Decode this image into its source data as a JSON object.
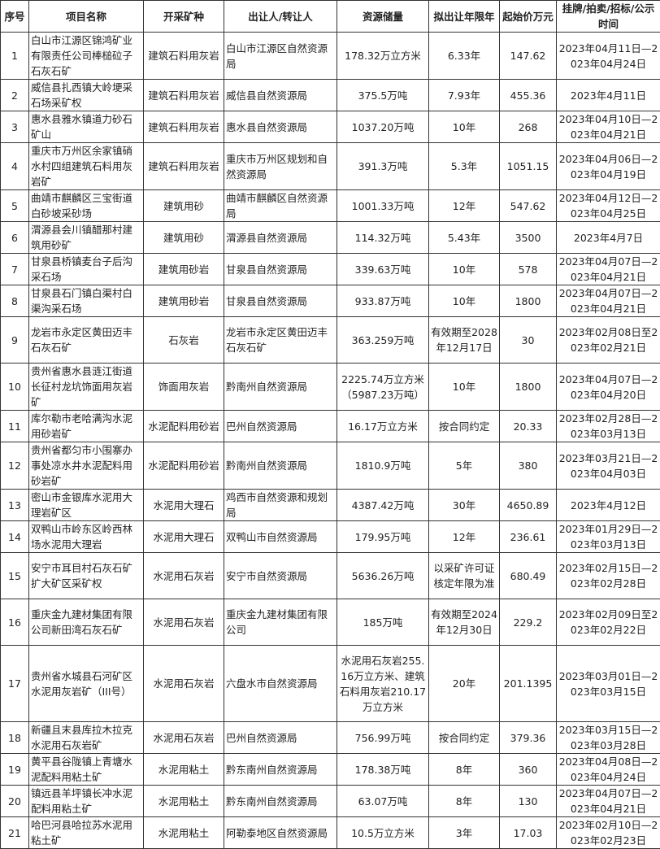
{
  "headers": [
    "序号",
    "项目名称",
    "开采矿种",
    "出让人/转让人",
    "资源储量",
    "拟出让年限年",
    "起始价万元",
    "挂牌/拍卖/招标/公示时间"
  ],
  "rows": [
    [
      "1",
      "白山市江源区锦鸿矿业有限责任公司棒槌砬子石灰石矿",
      "建筑石料用灰岩",
      "白山市江源区自然资源局",
      "178.32万立方米",
      "6.33年",
      "147.62",
      "2023年04月11日—2023年04月24日"
    ],
    [
      "2",
      "威信县扎西镇大岭埂采石场采矿权",
      "建筑石料用灰岩",
      "威信县自然资源局",
      "375.5万吨",
      "7.93年",
      "455.36",
      "2023年4月11日"
    ],
    [
      "3",
      "惠水县雅水镇道力砂石矿山",
      "建筑石料用灰岩",
      "惠水县自然资源局",
      "1037.20万吨",
      "10年",
      "268",
      "2023年04月10日—2023年04月21日"
    ],
    [
      "4",
      "重庆市万州区余家镇硝水村四组建筑石料用灰岩矿",
      "建筑石料用灰岩",
      "重庆市万州区规划和自然资源局",
      "391.3万吨",
      "5.3年",
      "1051.15",
      "2023年04月06日—2023年04月19日"
    ],
    [
      "5",
      "曲靖市麒麟区三宝街道白砂坡采砂场",
      "建筑用砂",
      "曲靖市麒麟区自然资源局",
      "1001.33万吨",
      "12年",
      "547.62",
      "2023年04月12日—2023年04月25日"
    ],
    [
      "6",
      "渭源县会川镇醋那村建筑用砂矿",
      "建筑用砂",
      "渭源县自然资源局",
      "114.32万吨",
      "5.43年",
      "3500",
      "2023年4月7日"
    ],
    [
      "7",
      "甘泉县桥镇麦台子后沟采石场",
      "建筑用砂岩",
      "甘泉县自然资源局",
      "339.63万吨",
      "10年",
      "578",
      "2023年04月07日—2023年04月21日"
    ],
    [
      "8",
      "甘泉县石门镇白渠村白渠沟采石场",
      "建筑用砂岩",
      "甘泉县自然资源局",
      "933.87万吨",
      "10年",
      "1800",
      "2023年04月07日—2023年04月21日"
    ],
    [
      "9",
      "龙岩市永定区黄田迈丰石灰石矿",
      "石灰岩",
      "龙岩市永定区黄田迈丰石灰石矿",
      "363.259万吨",
      "有效期至2028年12月17日",
      "30",
      "2023年02月08日至2023年02月21日"
    ],
    [
      "10",
      "贵州省惠水县涟江街道长征村龙坑饰面用灰岩矿",
      "饰面用灰岩",
      "黔南州自然资源局",
      "2225.74万立方米（5987.23万吨）",
      "10年",
      "1800",
      "2023年04月07日—2023年04月20日"
    ],
    [
      "11",
      "库尔勒市老哈满沟水泥用砂岩矿",
      "水泥配料用砂岩",
      "巴州自然资源局",
      "16.17万立方米",
      "按合同约定",
      "20.33",
      "2023年02月28日—2023年03月13日"
    ],
    [
      "12",
      "贵州省都匀市小围寨办事处凉水井水泥配料用砂岩矿",
      "水泥配料用砂岩",
      "黔南州自然资源局",
      "1810.9万吨",
      "5年",
      "380",
      "2023年03月21日—2023年04月03日"
    ],
    [
      "13",
      "密山市金银库水泥用大理岩矿区",
      "水泥用大理石",
      "鸡西市自然资源和规划局",
      "4387.42万吨",
      "30年",
      "4650.89",
      "2023年4月12日"
    ],
    [
      "14",
      "双鸭山市岭东区岭西林场水泥用大理岩",
      "水泥用大理石",
      "双鸭山市自然资源局",
      "179.95万吨",
      "12年",
      "236.61",
      "2023年01月29日—2023年03月13日"
    ],
    [
      "15",
      "安宁市耳目村石灰石矿扩大矿区采矿权",
      "水泥用石灰岩",
      "安宁市自然资源局",
      "5636.26万吨",
      "以采矿许可证核定年限为准",
      "680.49",
      "2023年02月15日—2023年02月28日"
    ],
    [
      "16",
      "重庆金九建材集团有限公司新田湾石灰石矿",
      "水泥用石灰岩",
      "重庆金九建材集团有限公司",
      "185万吨",
      "有效期至2024年12月30日",
      "229.2",
      "2023年02月09日至2023年02月22日"
    ],
    [
      "17",
      "贵州省水城县石河矿区水泥用灰岩矿（III号）",
      "水泥用石灰岩",
      "六盘水市自然资源局",
      "水泥用石灰岩255.16万立方米、建筑石料用灰岩210.17万立方米",
      "20年",
      "201.1395",
      "2023年03月01日—2023年03月15日"
    ],
    [
      "18",
      "新疆且末县库拉木拉克水泥用石灰岩矿",
      "水泥用石灰岩",
      "巴州自然资源局",
      "756.99万吨",
      "按合同约定",
      "379.36",
      "2023年03月15日—2023年03月28日"
    ],
    [
      "19",
      "黄平县谷陇镇上青塘水泥配料用粘土矿",
      "水泥用粘土",
      "黔东南州自然资源局",
      "178.38万吨",
      "8年",
      "360",
      "2023年04月08日—2023年04月24日"
    ],
    [
      "20",
      "镇远县羊坪镇长冲水泥配料用粘土矿",
      "水泥用粘土",
      "黔东南州自然资源局",
      "63.07万吨",
      "8年",
      "130",
      "2023年04月07日—2023年04月21日"
    ],
    [
      "21",
      "哈巴河县哈拉苏水泥用粘土矿",
      "水泥用粘土",
      "阿勒泰地区自然资源局",
      "10.5万立方米",
      "3年",
      "17.03",
      "2023年02月10日—2023年02月23日"
    ]
  ]
}
